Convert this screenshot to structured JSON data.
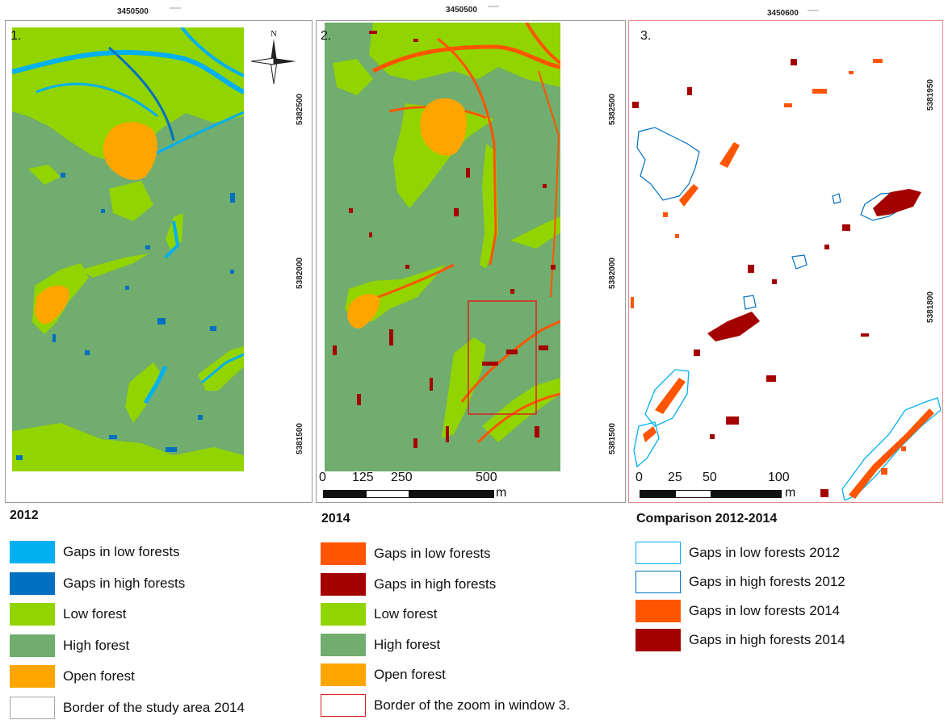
{
  "panels": [
    {
      "number": "1.",
      "top_coord": "3450500",
      "right_coords": [
        "5382500",
        "5382000",
        "5381500"
      ],
      "north_label": "N"
    },
    {
      "number": "2.",
      "top_coord": "3450500",
      "right_coords": [
        "5382500",
        "5382000",
        "5381500"
      ],
      "scale_labels": [
        "0",
        "125",
        "250",
        "500"
      ],
      "scale_unit": "m"
    },
    {
      "number": "3.",
      "top_coord": "3450600",
      "right_coords": [
        "5381950",
        "5381800"
      ],
      "scale_labels": [
        "0",
        "25",
        "50",
        "100"
      ],
      "scale_unit": "m"
    }
  ],
  "legends": [
    {
      "title": "2012",
      "items": [
        {
          "label": "Gaps in low forests",
          "color": "#00b0f0",
          "style": "fill"
        },
        {
          "label": "Gaps in high forests",
          "color": "#0070c0",
          "style": "fill"
        },
        {
          "label": "Low forest",
          "color": "#92d400",
          "style": "fill"
        },
        {
          "label": "High forest",
          "color": "#70ad6e",
          "style": "fill"
        },
        {
          "label": "Open forest",
          "color": "#ffa500",
          "style": "fill"
        },
        {
          "label": "Border of the study area 2014",
          "color": "#a6a6a6",
          "style": "outline"
        }
      ]
    },
    {
      "title": "2014",
      "items": [
        {
          "label": "Gaps in low forests",
          "color": "#ff5500",
          "style": "fill"
        },
        {
          "label": "Gaps in high forests",
          "color": "#a50000",
          "style": "fill"
        },
        {
          "label": "Low forest",
          "color": "#92d400",
          "style": "fill"
        },
        {
          "label": "High forest",
          "color": "#70ad6e",
          "style": "fill"
        },
        {
          "label": "Open forest",
          "color": "#ffa500",
          "style": "fill"
        },
        {
          "label": "Border of the zoom in window 3.",
          "color": "#e02020",
          "style": "outline"
        }
      ]
    },
    {
      "title": "Comparison 2012-2014",
      "items": [
        {
          "label": "Gaps in low forests 2012",
          "color": "#00b0f0",
          "style": "outline"
        },
        {
          "label": "Gaps in high forests 2012",
          "color": "#0070c0",
          "style": "outline"
        },
        {
          "label": "Gaps in low forests 2014",
          "color": "#ff5500",
          "style": "fill"
        },
        {
          "label": "Gaps in high forests 2014",
          "color": "#a50000",
          "style": "fill"
        }
      ]
    }
  ]
}
